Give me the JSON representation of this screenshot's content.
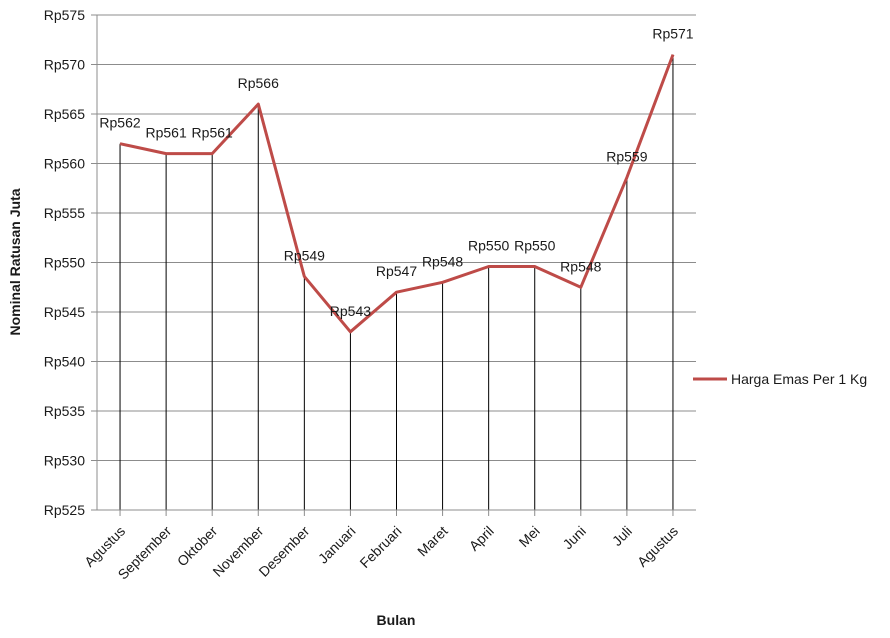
{
  "chart_data": {
    "type": "line",
    "title": "",
    "xlabel": "Bulan",
    "ylabel": "Nominal Ratusan Juta",
    "categories": [
      "Agustus",
      "September",
      "Oktober",
      "November",
      "Desember",
      "Januari",
      "Februari",
      "Maret",
      "April",
      "Mei",
      "Juni",
      "Juli",
      "Agustus"
    ],
    "series": [
      {
        "name": "Harga Emas Per 1 Kg",
        "values": [
          562,
          561,
          561,
          566,
          548.6,
          543,
          547,
          548,
          549.6,
          549.6,
          547.5,
          558.6,
          571
        ],
        "labels": [
          "Rp562",
          "Rp561",
          "Rp561",
          "Rp566",
          "Rp549",
          "Rp543",
          "Rp547",
          "Rp548",
          "Rp550",
          "Rp550",
          "Rp548",
          "Rp559",
          "Rp571"
        ],
        "color": "#be4b48"
      }
    ],
    "ylim": [
      525,
      575
    ],
    "yticks": [
      525,
      530,
      535,
      540,
      545,
      550,
      555,
      560,
      565,
      570,
      575
    ],
    "ytick_prefix": "Rp",
    "grid": true,
    "drop_lines": true,
    "legend_position": "right"
  }
}
